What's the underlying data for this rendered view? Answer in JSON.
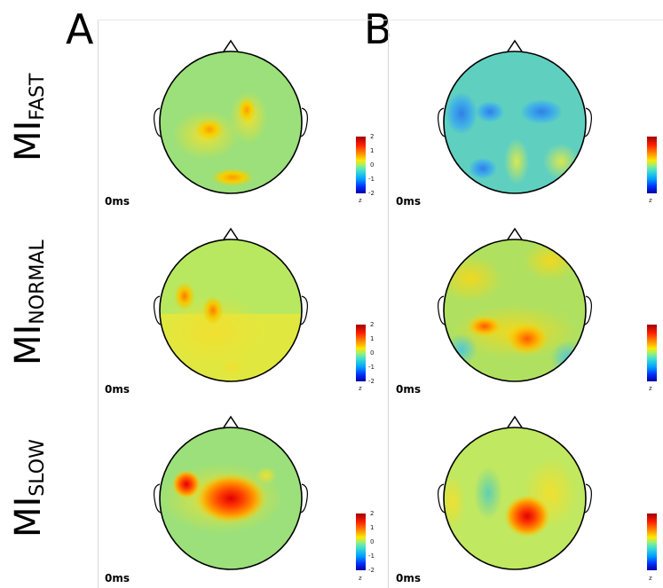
{
  "panels": [
    "A",
    "B"
  ],
  "rows": [
    {
      "main": "MI",
      "sub": "FAST"
    },
    {
      "main": "MI",
      "sub": "NORMAL"
    },
    {
      "main": "MI",
      "sub": "SLOW"
    }
  ],
  "time_label": "0ms",
  "colorbar": {
    "ticks": [
      "2",
      "1",
      "0",
      "-1",
      "-2"
    ],
    "unit": "z"
  }
}
